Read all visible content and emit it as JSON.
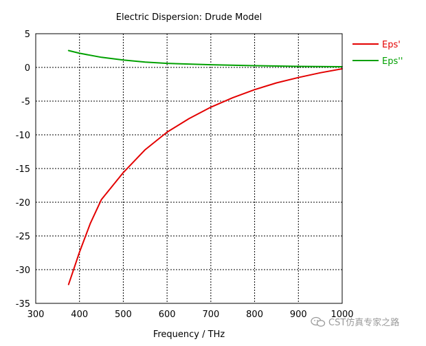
{
  "chart_data": {
    "type": "line",
    "title": "Electric Dispersion: Drude Model",
    "xlabel": "Frequency / THz",
    "ylabel": "",
    "xlim": [
      300,
      1000
    ],
    "ylim": [
      -35,
      5
    ],
    "xticks": [
      300,
      400,
      500,
      600,
      700,
      800,
      900,
      1000
    ],
    "yticks": [
      5,
      0,
      -5,
      -10,
      -15,
      -20,
      -25,
      -30,
      -35
    ],
    "grid": true,
    "legend_position": "right",
    "series": [
      {
        "name": "Eps'",
        "color": "#e30000",
        "x": [
          375,
          400,
          425,
          450,
          475,
          500,
          550,
          600,
          650,
          700,
          750,
          800,
          850,
          900,
          950,
          1000
        ],
        "y": [
          -32.2,
          -27.4,
          -23.1,
          -19.6,
          -17.6,
          -15.6,
          -12.2,
          -9.6,
          -7.6,
          -5.9,
          -4.5,
          -3.3,
          -2.3,
          -1.5,
          -0.8,
          -0.2
        ]
      },
      {
        "name": "Eps''",
        "color": "#00a000",
        "x": [
          375,
          400,
          450,
          500,
          550,
          600,
          700,
          800,
          900,
          1000
        ],
        "y": [
          2.5,
          2.1,
          1.5,
          1.1,
          0.8,
          0.6,
          0.4,
          0.25,
          0.15,
          0.1
        ]
      }
    ]
  },
  "watermark": {
    "text": "CST仿真专家之路"
  }
}
